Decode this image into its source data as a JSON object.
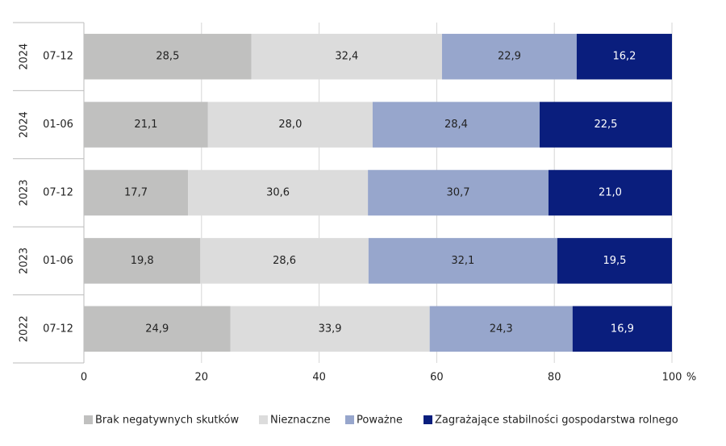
{
  "chart_data": {
    "type": "stacked-barh",
    "categories": [
      "07-12",
      "01-06",
      "07-12",
      "01-06",
      "07-12"
    ],
    "category_groups": [
      "2024",
      "2024",
      "2023",
      "2023",
      "2022"
    ],
    "series": [
      {
        "name": "Brak negatywnych skutków",
        "color": "#c0c0bf",
        "values": [
          28.5,
          21.1,
          17.7,
          19.8,
          24.9
        ],
        "value_labels": [
          "28,5",
          "21,1",
          "17,7",
          "19,8",
          "24,9"
        ]
      },
      {
        "name": "Nieznaczne",
        "color": "#dcdcdc",
        "values": [
          32.4,
          28.0,
          30.6,
          28.6,
          33.9
        ],
        "value_labels": [
          "32,4",
          "28,0",
          "30,6",
          "28,6",
          "33,9"
        ]
      },
      {
        "name": "Poważne",
        "color": "#97a6cc",
        "values": [
          22.9,
          28.4,
          30.7,
          32.1,
          24.3
        ],
        "value_labels": [
          "22,9",
          "28,4",
          "30,7",
          "32,1",
          "24,3"
        ]
      },
      {
        "name": "Zagrażające stabilności gospodarstwa rolnego",
        "color": "#0a1e7d",
        "values": [
          16.2,
          22.5,
          21.0,
          19.5,
          16.9
        ],
        "value_labels": [
          "16,2",
          "22,5",
          "21,0",
          "19,5",
          "16,9"
        ]
      }
    ],
    "xlim": [
      0,
      100
    ],
    "xticks": [
      0,
      20,
      40,
      60,
      80,
      100
    ],
    "x_unit": "%",
    "grid": true
  }
}
